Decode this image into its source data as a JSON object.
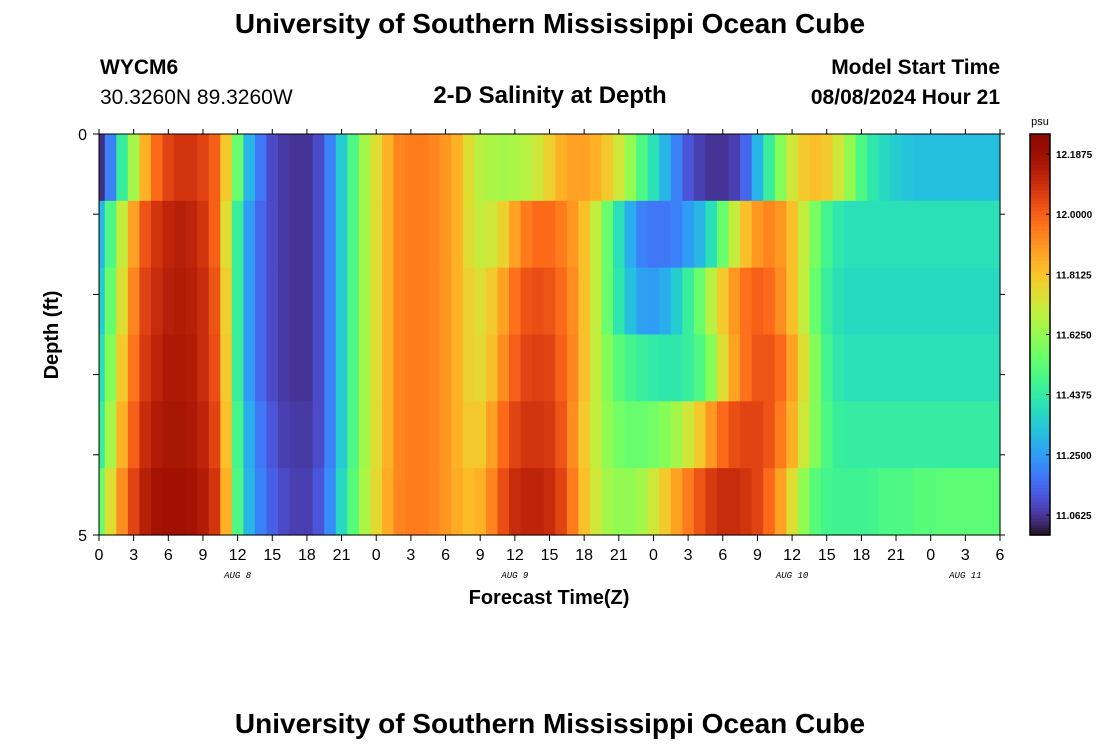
{
  "header": {
    "title": "University of Southern Mississippi Ocean Cube",
    "station_id": "WYCM6",
    "coordinates": "30.3260N  89.3260W",
    "subtitle": "2-D Salinity at Depth",
    "model_start_label": "Model Start Time",
    "model_start_value": "08/08/2024 Hour 21"
  },
  "footer": {
    "title": "University of Southern Mississippi Ocean Cube"
  },
  "chart_data": {
    "type": "heatmap",
    "title": "2-D Salinity at Depth",
    "xlabel": "Forecast Time(Z)",
    "ylabel": "Depth (ft)",
    "x_hours_from_aug8_00z": [
      0,
      1,
      2,
      3,
      4,
      5,
      6,
      7,
      8,
      9,
      10,
      11,
      12,
      13,
      14,
      15,
      16,
      17,
      18,
      19,
      20,
      21,
      22,
      23,
      24,
      25,
      26,
      27,
      28,
      29,
      30,
      31,
      32,
      33,
      34,
      35,
      36,
      37,
      38,
      39,
      40,
      41,
      42,
      43,
      44,
      45,
      46,
      47,
      48,
      49,
      50,
      51,
      52,
      53,
      54,
      55,
      56,
      57,
      58,
      59,
      60,
      61,
      62,
      63,
      64,
      65,
      66,
      67,
      68,
      69,
      70,
      71,
      72,
      73,
      74,
      75,
      76,
      77,
      78
    ],
    "x_tick_labels": [
      "0",
      "3",
      "6",
      "9",
      "12",
      "15",
      "18",
      "21",
      "0",
      "3",
      "6",
      "9",
      "12",
      "15",
      "18",
      "21",
      "0",
      "3",
      "6",
      "9",
      "12",
      "15",
      "18",
      "21",
      "0",
      "3",
      "6"
    ],
    "day_labels": [
      {
        "label": "AUG 8",
        "hour": 12
      },
      {
        "label": "AUG 9",
        "hour": 36
      },
      {
        "label": "AUG 10",
        "hour": 60
      },
      {
        "label": "AUG 11",
        "hour": 75
      }
    ],
    "y_tick_labels": [
      "0",
      "5"
    ],
    "ylim": [
      0,
      5
    ],
    "depth_levels_ft": [
      0,
      1,
      2,
      3,
      4,
      5
    ],
    "values_psu": [
      [
        11.05,
        11.2,
        11.45,
        11.65,
        11.85,
        11.98,
        12.05,
        12.08,
        12.08,
        12.05,
        12.0,
        11.8,
        11.55,
        11.3,
        11.18,
        11.1,
        11.07,
        11.06,
        11.06,
        11.1,
        11.2,
        11.35,
        11.5,
        11.65,
        11.75,
        11.85,
        11.93,
        11.95,
        11.95,
        11.93,
        11.9,
        11.85,
        11.75,
        11.68,
        11.66,
        11.65,
        11.66,
        11.68,
        11.72,
        11.78,
        11.85,
        11.88,
        11.88,
        11.85,
        11.8,
        11.72,
        11.62,
        11.5,
        11.4,
        11.3,
        11.2,
        11.12,
        11.08,
        11.06,
        11.06,
        11.08,
        11.15,
        11.3,
        11.45,
        11.6,
        11.72,
        11.8,
        11.82,
        11.8,
        11.72,
        11.62,
        11.5,
        11.42,
        11.38,
        11.35,
        11.33,
        11.32,
        11.32,
        11.32,
        11.32,
        11.32,
        11.32,
        11.32,
        11.32
      ],
      [
        11.3,
        11.5,
        11.7,
        11.88,
        12.02,
        12.08,
        12.12,
        12.13,
        12.12,
        12.08,
        12.0,
        11.75,
        11.45,
        11.25,
        11.15,
        11.1,
        11.07,
        11.06,
        11.06,
        11.1,
        11.2,
        11.35,
        11.5,
        11.65,
        11.75,
        11.85,
        11.93,
        11.95,
        11.95,
        11.93,
        11.9,
        11.85,
        11.75,
        11.7,
        11.72,
        11.78,
        11.88,
        11.95,
        11.98,
        11.98,
        11.95,
        11.9,
        11.82,
        11.7,
        11.55,
        11.4,
        11.28,
        11.2,
        11.18,
        11.18,
        11.2,
        11.25,
        11.3,
        11.4,
        11.55,
        11.7,
        11.82,
        11.9,
        11.93,
        11.9,
        11.82,
        11.7,
        11.58,
        11.48,
        11.42,
        11.4,
        11.4,
        11.4,
        11.4,
        11.4,
        11.4,
        11.4,
        11.4,
        11.4,
        11.4,
        11.4,
        11.4,
        11.4,
        11.4
      ],
      [
        11.35,
        11.55,
        11.75,
        11.93,
        12.05,
        12.1,
        12.13,
        12.14,
        12.13,
        12.1,
        12.02,
        11.78,
        11.45,
        11.25,
        11.15,
        11.1,
        11.07,
        11.06,
        11.06,
        11.1,
        11.2,
        11.35,
        11.5,
        11.65,
        11.75,
        11.85,
        11.93,
        11.95,
        11.95,
        11.93,
        11.9,
        11.85,
        11.78,
        11.75,
        11.8,
        11.88,
        11.97,
        12.02,
        12.03,
        12.02,
        11.98,
        11.92,
        11.82,
        11.7,
        11.55,
        11.42,
        11.32,
        11.26,
        11.25,
        11.28,
        11.35,
        11.45,
        11.55,
        11.68,
        11.8,
        11.9,
        11.97,
        12.0,
        11.98,
        11.92,
        11.82,
        11.7,
        11.55,
        11.45,
        11.4,
        11.38,
        11.38,
        11.38,
        11.38,
        11.38,
        11.38,
        11.38,
        11.38,
        11.38,
        11.38,
        11.38,
        11.38,
        11.38,
        11.38
      ],
      [
        11.4,
        11.6,
        11.8,
        11.96,
        12.07,
        12.12,
        12.15,
        12.15,
        12.14,
        12.1,
        12.03,
        11.8,
        11.45,
        11.25,
        11.15,
        11.1,
        11.07,
        11.06,
        11.06,
        11.1,
        11.2,
        11.35,
        11.5,
        11.65,
        11.75,
        11.85,
        11.93,
        11.95,
        11.95,
        11.93,
        11.9,
        11.85,
        11.78,
        11.76,
        11.82,
        11.92,
        12.0,
        12.05,
        12.06,
        12.05,
        12.0,
        11.93,
        11.82,
        11.7,
        11.6,
        11.52,
        11.48,
        11.45,
        11.43,
        11.42,
        11.42,
        11.45,
        11.5,
        11.6,
        11.75,
        11.88,
        11.97,
        12.02,
        12.02,
        11.98,
        11.88,
        11.75,
        11.6,
        11.48,
        11.42,
        11.4,
        11.4,
        11.4,
        11.4,
        11.4,
        11.4,
        11.4,
        11.4,
        11.4,
        11.4,
        11.4,
        11.4,
        11.4,
        11.4
      ],
      [
        11.45,
        11.65,
        11.85,
        12.0,
        12.1,
        12.14,
        12.16,
        12.16,
        12.15,
        12.12,
        12.05,
        11.82,
        11.48,
        11.28,
        11.18,
        11.12,
        11.08,
        11.07,
        11.07,
        11.1,
        11.2,
        11.35,
        11.5,
        11.65,
        11.75,
        11.85,
        11.93,
        11.95,
        11.95,
        11.93,
        11.9,
        11.85,
        11.8,
        11.8,
        11.88,
        11.98,
        12.05,
        12.08,
        12.08,
        12.07,
        12.02,
        11.92,
        11.8,
        11.7,
        11.62,
        11.57,
        11.55,
        11.55,
        11.57,
        11.6,
        11.65,
        11.72,
        11.8,
        11.9,
        11.98,
        12.03,
        12.05,
        12.05,
        12.02,
        11.95,
        11.85,
        11.72,
        11.6,
        11.5,
        11.45,
        11.44,
        11.44,
        11.44,
        11.44,
        11.44,
        11.44,
        11.44,
        11.44,
        11.44,
        11.44,
        11.44,
        11.44,
        11.44,
        11.44
      ],
      [
        11.55,
        11.75,
        11.92,
        12.05,
        12.13,
        12.17,
        12.18,
        12.18,
        12.17,
        12.14,
        12.08,
        11.85,
        11.5,
        11.3,
        11.2,
        11.14,
        11.1,
        11.08,
        11.08,
        11.12,
        11.22,
        11.38,
        11.52,
        11.66,
        11.76,
        11.86,
        11.93,
        11.95,
        11.95,
        11.93,
        11.9,
        11.86,
        11.83,
        11.85,
        11.93,
        12.03,
        12.1,
        12.12,
        12.12,
        12.1,
        12.05,
        11.95,
        11.82,
        11.72,
        11.65,
        11.62,
        11.62,
        11.65,
        11.72,
        11.8,
        11.88,
        11.95,
        12.02,
        12.07,
        12.1,
        12.1,
        12.08,
        12.05,
        11.98,
        11.88,
        11.75,
        11.62,
        11.52,
        11.48,
        11.47,
        11.47,
        11.47,
        11.48,
        11.5,
        11.5,
        11.5,
        11.52,
        11.52,
        11.53,
        11.53,
        11.53,
        11.53,
        11.53,
        11.53
      ]
    ],
    "colorbar": {
      "unit": "psu",
      "range": [
        11.0,
        12.25
      ],
      "tick_labels": [
        "12.1875",
        "12.0000",
        "11.8125",
        "11.6250",
        "11.4375",
        "11.2500",
        "11.0625"
      ],
      "tick_values": [
        12.1875,
        12.0,
        11.8125,
        11.625,
        11.4375,
        11.25,
        11.0625
      ]
    }
  }
}
